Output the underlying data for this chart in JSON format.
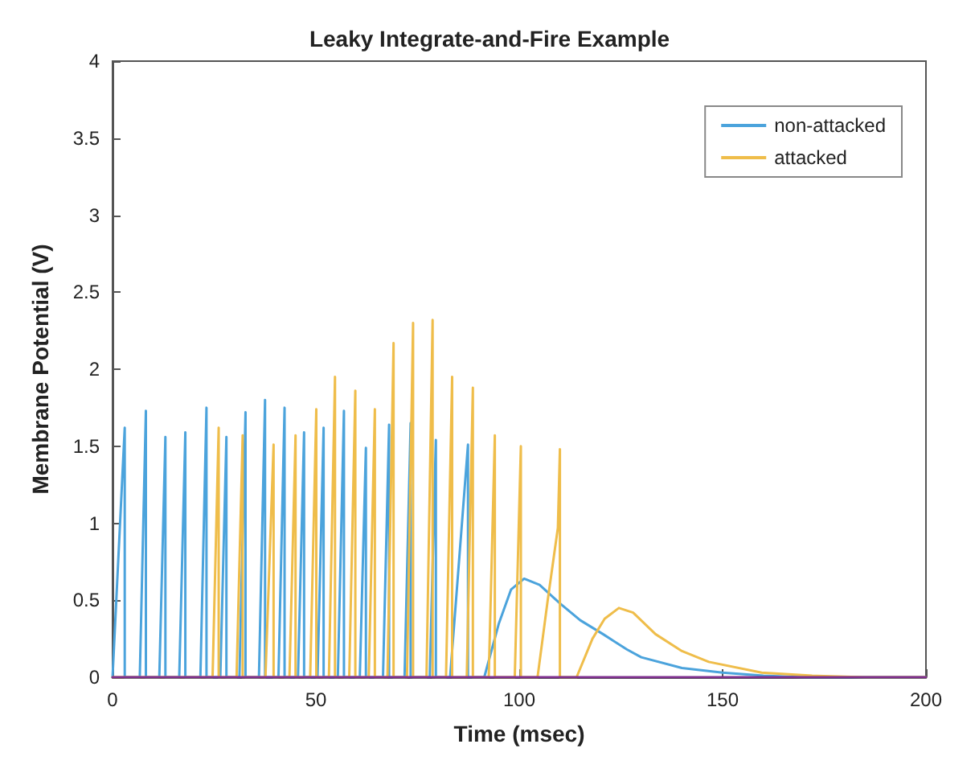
{
  "chart_data": {
    "type": "line",
    "title": "Leaky Integrate-and-Fire Example",
    "xlabel": "Time (msec)",
    "ylabel": "Membrane Potential (V)",
    "xlim": [
      0,
      200
    ],
    "xticks": [
      0,
      50,
      100,
      150,
      200
    ],
    "ylim": [
      0,
      4
    ],
    "yticks": [
      0,
      0.5,
      1,
      1.5,
      2,
      2.5,
      3,
      3.5,
      4
    ],
    "grid": false,
    "legend": "top right",
    "marker": "none",
    "line_style": "solid",
    "series": [
      {
        "name": "non-attacked",
        "color": "#4ba3dc",
        "x": [
          0,
          3.0,
          3.0,
          6.7,
          8.2,
          8.2,
          11.5,
          13,
          13,
          16.4,
          17.9,
          17.9,
          21.6,
          23.1,
          23.1,
          26.5,
          28,
          28,
          31.2,
          32.7,
          32.7,
          36,
          37.5,
          37.5,
          40.8,
          42.3,
          42.3,
          45.6,
          47.1,
          47.1,
          50.4,
          51.9,
          51.9,
          55.4,
          56.9,
          56.9,
          60.8,
          62.3,
          62.3,
          66.5,
          68,
          68,
          71.8,
          73.3,
          73.3,
          78,
          79.5,
          79.5,
          83,
          87.4,
          87.4,
          91.4,
          95,
          98,
          101.2,
          105,
          110,
          115,
          120.6,
          126.5,
          130,
          140,
          150,
          160,
          170,
          200
        ],
        "values": [
          0,
          1.62,
          0,
          0,
          1.73,
          0,
          0,
          1.56,
          0,
          0,
          1.59,
          0,
          0,
          1.75,
          0,
          0,
          1.56,
          0,
          0,
          1.72,
          0,
          0,
          1.8,
          0,
          0,
          1.75,
          0,
          0,
          1.59,
          0,
          0,
          1.62,
          0,
          0,
          1.73,
          0,
          0,
          1.49,
          0,
          0,
          1.64,
          0,
          0,
          1.65,
          0,
          0,
          1.54,
          0,
          0,
          1.51,
          0,
          0,
          0.35,
          0.57,
          0.64,
          0.6,
          0.48,
          0.37,
          0.28,
          0.18,
          0.13,
          0.06,
          0.03,
          0.01,
          0,
          0
        ]
      },
      {
        "name": "attacked",
        "color": "#efbd4a",
        "x": [
          0,
          24.6,
          26.1,
          26.1,
          30.5,
          32.0,
          32.0,
          37.6,
          39.6,
          39.6,
          43.5,
          45.0,
          45.0,
          48.6,
          50.1,
          50.1,
          53.2,
          54.7,
          54.7,
          58.2,
          59.7,
          59.7,
          63,
          64.5,
          64.5,
          67.6,
          69.1,
          69.1,
          72.4,
          73.9,
          73.9,
          77.2,
          78.7,
          78.7,
          82,
          83.5,
          83.5,
          87.1,
          88.6,
          88.6,
          92.5,
          94.0,
          94.0,
          98.9,
          100.4,
          100.4,
          104.5,
          107,
          109.5,
          110,
          110,
          114.1,
          118,
          121,
          124.5,
          128,
          133.5,
          140,
          146.6,
          159.6,
          172,
          185,
          200
        ],
        "values": [
          0,
          0,
          1.62,
          0,
          0,
          1.57,
          0,
          0,
          1.51,
          0,
          0,
          1.57,
          0,
          0,
          1.74,
          0,
          0,
          1.95,
          0,
          0,
          1.86,
          0,
          0,
          1.74,
          0,
          0,
          2.17,
          0,
          0,
          2.3,
          0,
          0,
          2.32,
          0,
          0,
          1.95,
          0,
          0,
          1.88,
          0,
          0,
          1.57,
          0,
          0,
          1.5,
          0,
          0,
          0.5,
          0.97,
          1.48,
          0,
          0,
          0.25,
          0.38,
          0.45,
          0.42,
          0.28,
          0.17,
          0.1,
          0.03,
          0.01,
          0,
          0
        ]
      },
      {
        "color": "#7e2f8e",
        "x": [
          0,
          200
        ],
        "values": [
          0,
          0
        ]
      }
    ]
  }
}
